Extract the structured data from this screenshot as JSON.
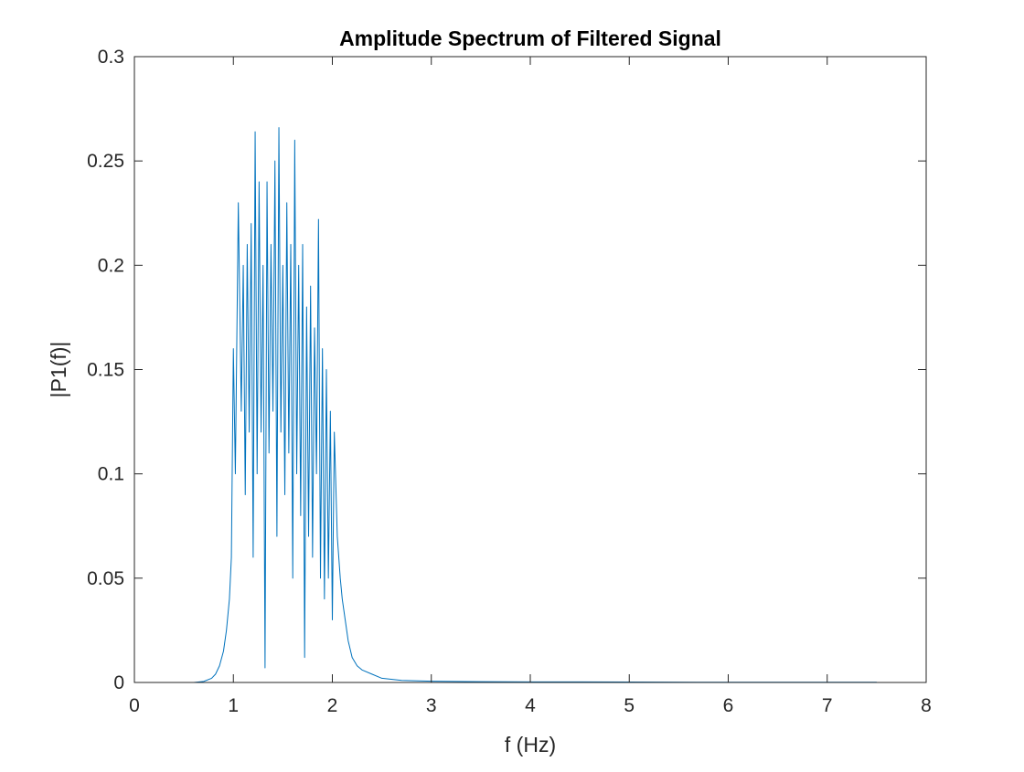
{
  "chart_data": {
    "type": "line",
    "title": "Amplitude Spectrum of Filtered Signal",
    "xlabel": "f (Hz)",
    "ylabel": "|P1(f)|",
    "xlim": [
      0,
      8
    ],
    "ylim": [
      0,
      0.3
    ],
    "x_ticks": [
      "0",
      "1",
      "2",
      "3",
      "4",
      "5",
      "6",
      "7",
      "8"
    ],
    "y_ticks": [
      "0",
      "0.05",
      "0.1",
      "0.15",
      "0.2",
      "0.25",
      "0.3"
    ],
    "grid": false,
    "legend": "none",
    "series": [
      {
        "color": "#0072bd",
        "x": [
          0,
          0.6,
          0.7,
          0.78,
          0.82,
          0.86,
          0.9,
          0.93,
          0.96,
          0.98,
          1.0,
          1.02,
          1.05,
          1.08,
          1.1,
          1.12,
          1.14,
          1.16,
          1.18,
          1.2,
          1.22,
          1.24,
          1.26,
          1.28,
          1.3,
          1.32,
          1.34,
          1.36,
          1.38,
          1.4,
          1.42,
          1.44,
          1.46,
          1.48,
          1.5,
          1.52,
          1.54,
          1.56,
          1.58,
          1.6,
          1.62,
          1.64,
          1.66,
          1.68,
          1.7,
          1.72,
          1.74,
          1.76,
          1.78,
          1.8,
          1.82,
          1.84,
          1.86,
          1.88,
          1.9,
          1.92,
          1.94,
          1.96,
          1.98,
          2.0,
          2.02,
          2.05,
          2.08,
          2.1,
          2.13,
          2.16,
          2.2,
          2.25,
          2.3,
          2.4,
          2.5,
          2.7,
          3.0,
          3.5,
          4.0,
          5.0,
          6.0,
          7.0,
          7.5
        ],
        "y": [
          0,
          0,
          0.0005,
          0.002,
          0.004,
          0.008,
          0.015,
          0.025,
          0.04,
          0.06,
          0.16,
          0.1,
          0.23,
          0.13,
          0.2,
          0.09,
          0.21,
          0.12,
          0.22,
          0.06,
          0.264,
          0.1,
          0.24,
          0.12,
          0.2,
          0.007,
          0.24,
          0.11,
          0.21,
          0.13,
          0.25,
          0.07,
          0.266,
          0.12,
          0.2,
          0.09,
          0.23,
          0.11,
          0.21,
          0.05,
          0.26,
          0.1,
          0.2,
          0.08,
          0.21,
          0.012,
          0.18,
          0.07,
          0.19,
          0.06,
          0.17,
          0.1,
          0.222,
          0.05,
          0.16,
          0.04,
          0.15,
          0.05,
          0.13,
          0.03,
          0.12,
          0.07,
          0.05,
          0.04,
          0.03,
          0.02,
          0.012,
          0.008,
          0.006,
          0.004,
          0.002,
          0.001,
          0.0006,
          0.0004,
          0.0003,
          0.0002,
          0.0001,
          0.0001,
          0.0001
        ]
      }
    ]
  }
}
